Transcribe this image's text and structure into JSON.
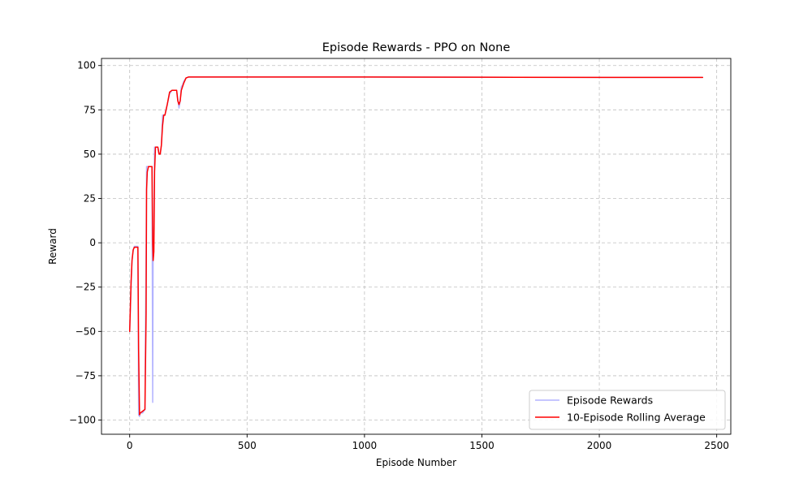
{
  "chart_data": {
    "type": "line",
    "title": "Episode Rewards - PPO on None",
    "xlabel": "Episode Number",
    "ylabel": "Reward",
    "xlim": [
      -120,
      2560
    ],
    "ylim": [
      -108,
      104
    ],
    "xticks": [
      0,
      500,
      1000,
      1500,
      2000,
      2500
    ],
    "yticks": [
      -100,
      -75,
      -50,
      -25,
      0,
      25,
      50,
      75,
      100
    ],
    "grid": true,
    "legend_position": "lower-right",
    "series": [
      {
        "name": "Episode Rewards",
        "color": "#b3b3ff",
        "x": [
          0,
          3,
          6,
          10,
          15,
          20,
          28,
          35,
          38,
          42,
          45,
          55,
          65,
          70,
          72,
          75,
          80,
          90,
          95,
          98,
          100,
          103,
          106,
          110,
          115,
          120,
          125,
          130,
          135,
          140,
          145,
          150,
          155,
          160,
          170,
          180,
          185,
          190,
          200,
          210,
          215,
          220,
          225,
          230,
          240,
          250,
          300,
          500,
          800,
          1000,
          1500,
          2000,
          2440
        ],
        "y": [
          -50,
          -38,
          -24,
          -10,
          -4,
          -2,
          -2,
          -2,
          -97,
          -98,
          -96,
          -96,
          -94,
          0,
          43,
          43,
          43,
          43,
          43,
          -90,
          0,
          10,
          54,
          54,
          54,
          54,
          50,
          50,
          55,
          72,
          72,
          72,
          75,
          78,
          84,
          86,
          86,
          86,
          86,
          76,
          80,
          88,
          89,
          91,
          93,
          93.5,
          93.5,
          93.5,
          93.5,
          93.5,
          93.4,
          93.3,
          93.3
        ]
      },
      {
        "name": "10-Episode Rolling Average",
        "color": "#ff0000",
        "x": [
          0,
          3,
          6,
          10,
          15,
          20,
          28,
          35,
          38,
          42,
          45,
          55,
          65,
          70,
          72,
          75,
          80,
          90,
          95,
          98,
          100,
          103,
          106,
          110,
          115,
          120,
          125,
          130,
          135,
          140,
          145,
          150,
          155,
          160,
          170,
          180,
          185,
          190,
          200,
          205,
          210,
          215,
          220,
          225,
          230,
          240,
          250,
          300,
          500,
          800,
          1000,
          1500,
          2000,
          2440
        ],
        "y": [
          -50,
          -36,
          -22,
          -10,
          -4,
          -2.5,
          -2.5,
          -2.5,
          -60,
          -97,
          -96,
          -95,
          -94,
          -40,
          30,
          40,
          43,
          43,
          43,
          0,
          -10,
          -5,
          40,
          54,
          54,
          54,
          50,
          50,
          55,
          66,
          72,
          72,
          75,
          78,
          85,
          86,
          86,
          86,
          86,
          80,
          78,
          80,
          86,
          88,
          90,
          93,
          93.5,
          93.5,
          93.5,
          93.5,
          93.5,
          93.4,
          93.3,
          93.3
        ]
      }
    ]
  }
}
